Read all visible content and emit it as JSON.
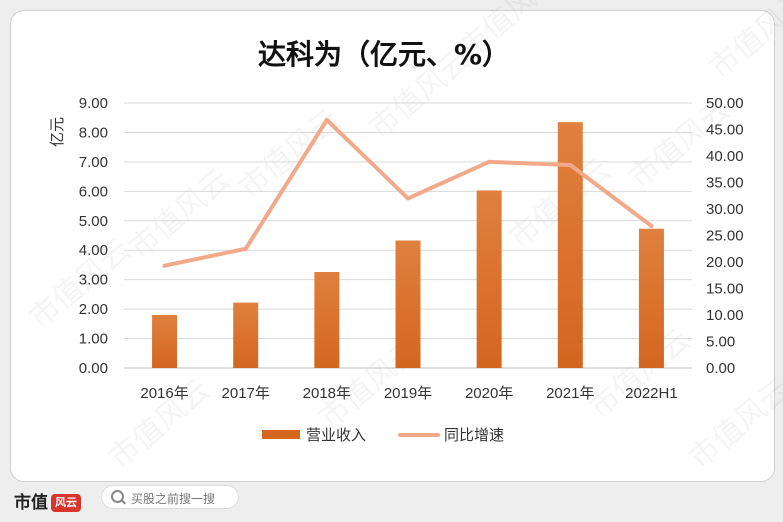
{
  "chart_data": {
    "type": "bar+line",
    "title": "达科为（亿元、%）",
    "ylabel": "亿元",
    "categories": [
      "2016年",
      "2017年",
      "2018年",
      "2019年",
      "2020年",
      "2021年",
      "2022H1"
    ],
    "series": [
      {
        "name": "营业收入",
        "type": "bar",
        "axis": "left",
        "color": "#d4661f",
        "values": [
          1.8,
          2.22,
          3.26,
          4.33,
          6.03,
          8.35,
          4.73
        ]
      },
      {
        "name": "同比增速",
        "type": "line",
        "axis": "right",
        "color": "#f2a98a",
        "values": [
          19.3,
          22.5,
          46.8,
          32.0,
          38.9,
          38.3,
          26.8
        ]
      }
    ],
    "y_left": {
      "ylim": [
        0,
        9
      ],
      "ticks": [
        "0.00",
        "1.00",
        "2.00",
        "3.00",
        "4.00",
        "5.00",
        "6.00",
        "7.00",
        "8.00",
        "9.00"
      ]
    },
    "y_right": {
      "ylim": [
        0,
        50
      ],
      "ticks": [
        "0.00",
        "5.00",
        "10.00",
        "15.00",
        "20.00",
        "25.00",
        "30.00",
        "35.00",
        "40.00",
        "45.00",
        "50.00"
      ]
    },
    "grid": true,
    "legend_position": "bottom"
  },
  "watermark": "市值风云",
  "footer": {
    "brand": "市值",
    "brand_mark": "风云",
    "search_placeholder": "买股之前搜一搜"
  }
}
